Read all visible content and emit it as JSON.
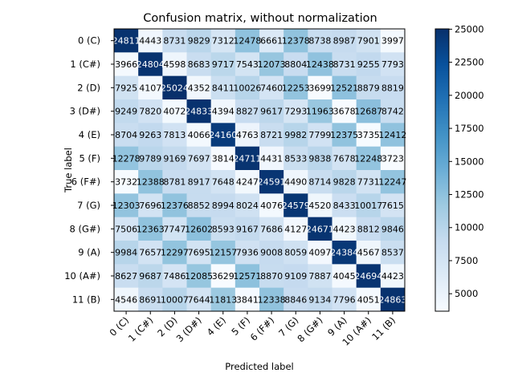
{
  "chart_data": {
    "type": "heatmap",
    "title": "Confusion matrix, without normalization",
    "xlabel": "Predicted label",
    "ylabel": "True label",
    "row_labels": [
      "0 (C)",
      "1 (C#)",
      "2 (D)",
      "3 (D#)",
      "4 (E)",
      "5 (F)",
      "6 (F#)",
      "7 (G)",
      "8 (G#)",
      "9 (A)",
      "10 (A#)",
      "11 (B)"
    ],
    "col_labels": [
      "0 (C)",
      "1 (C#)",
      "2 (D)",
      "3 (D#)",
      "4 (E)",
      "5 (F)",
      "6 (F#)",
      "7 (G)",
      "8 (G#)",
      "9 (A)",
      "10 (A#)",
      "11 (B)"
    ],
    "matrix": [
      [
        24811,
        4443,
        8731,
        9829,
        7312,
        12478,
        6661,
        12378,
        8738,
        8987,
        7901,
        3997
      ],
      [
        3966,
        24804,
        4598,
        8683,
        9717,
        7543,
        12073,
        8804,
        12438,
        8731,
        9255,
        7793
      ],
      [
        7925,
        4107,
        25024,
        4352,
        8411,
        10026,
        7460,
        12253,
        3699,
        12521,
        8879,
        8819
      ],
      [
        9249,
        7820,
        4072,
        24833,
        4394,
        8827,
        9617,
        7293,
        11963,
        3678,
        12687,
        8742
      ],
      [
        8704,
        9263,
        7813,
        4066,
        24160,
        4763,
        8721,
        9982,
        7799,
        12375,
        3735,
        12412
      ],
      [
        12278,
        9789,
        9169,
        7697,
        3814,
        24711,
        4431,
        8533,
        9838,
        7678,
        12248,
        3723
      ],
      [
        3732,
        12388,
        8781,
        8917,
        7648,
        4247,
        24591,
        4490,
        8714,
        9828,
        7731,
        12247
      ],
      [
        12303,
        7696,
        12376,
        8852,
        8994,
        8024,
        4076,
        24579,
        4520,
        8433,
        10017,
        7615
      ],
      [
        7506,
        12363,
        7747,
        12602,
        8593,
        9167,
        7686,
        4127,
        24671,
        4423,
        8812,
        9846
      ],
      [
        9984,
        7657,
        12297,
        7695,
        12157,
        7936,
        9008,
        8059,
        4097,
        24384,
        4567,
        8537
      ],
      [
        8627,
        9687,
        7486,
        12085,
        3629,
        12571,
        8870,
        9109,
        7887,
        4045,
        24694,
        4423
      ],
      [
        4546,
        8691,
        10007,
        7644,
        11813,
        3841,
        12338,
        8846,
        9134,
        7796,
        4051,
        24863
      ]
    ],
    "colorbar": {
      "cmap": "Blues",
      "vmin": 3678,
      "vmax": 25024,
      "ticks": [
        5000,
        7500,
        10000,
        12500,
        15000,
        17500,
        20000,
        22500,
        25000
      ]
    },
    "grid": false,
    "legend": "none"
  }
}
